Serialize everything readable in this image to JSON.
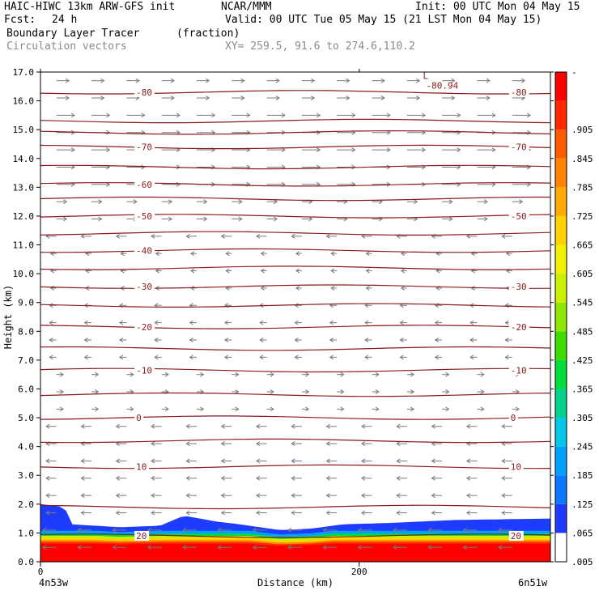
{
  "header": {
    "model": "HAIC-HIWC 13km ARW-GFS init",
    "org": "NCAR/MMM",
    "init": "Init: 00 UTC Mon 04 May 15",
    "fcst_label": "Fcst:",
    "fcst_value": "24 h",
    "valid": "Valid: 00 UTC Tue 05 May 15 (21 LST Mon 04 May 15)",
    "field": "Boundary Layer Tracer",
    "field_units": "(fraction)",
    "vectors": "Circulation vectors",
    "xy": "XY= 259.5, 91.6 to 274.6,110.2"
  },
  "chart_data": {
    "type": "heatmap",
    "title": "Boundary Layer Tracer",
    "xlabel": "Distance (km)",
    "ylabel": "Height (km)",
    "xlim": [
      0,
      320
    ],
    "ylim": [
      0,
      17
    ],
    "x_ticks": [
      {
        "value": 0,
        "label": "0"
      },
      {
        "value": 200,
        "label": "200"
      }
    ],
    "x_end_labels": {
      "left": "4n53w",
      "right": "6n51w"
    },
    "y_ticks": [
      "0.0",
      "1.0",
      "2.0",
      "3.0",
      "4.0",
      "5.0",
      "6.0",
      "7.0",
      "8.0",
      "9.0",
      "10.0",
      "11.0",
      "12.0",
      "13.0",
      "14.0",
      "15.0",
      "16.0",
      "17.0"
    ],
    "colorbar": {
      "labels": [
        ".005",
        ".065",
        ".125",
        ".185",
        ".245",
        ".305",
        ".365",
        ".425",
        ".485",
        ".545",
        ".605",
        ".665",
        ".725",
        ".785",
        ".845",
        ".905",
        "-"
      ],
      "colors": [
        "#ffffff",
        "#1e3cff",
        "#0a78ff",
        "#00a0ff",
        "#00c8e6",
        "#00d28c",
        "#00dc3c",
        "#3cdc00",
        "#8ce600",
        "#c8f000",
        "#f0f000",
        "#ffd200",
        "#ffaa00",
        "#ff8200",
        "#ff5a00",
        "#ff2800",
        "#ff0000"
      ]
    },
    "temperature_contours": {
      "units": "C",
      "lines": [
        {
          "value": 20,
          "height": 0.9,
          "labels": [
            "20",
            "20"
          ]
        },
        {
          "value": 10,
          "height": 3.3,
          "labels": [
            "10",
            "10"
          ]
        },
        {
          "value": 0,
          "height": 5.0,
          "labels": [
            "0",
            "0"
          ]
        },
        {
          "value": -10,
          "height": 6.65,
          "labels": [
            "-10",
            "-10"
          ]
        },
        {
          "value": -20,
          "height": 8.15,
          "labels": [
            "-20",
            "-20"
          ]
        },
        {
          "value": -30,
          "height": 9.55,
          "labels": [
            "-30",
            "-30"
          ]
        },
        {
          "value": -40,
          "height": 10.8,
          "labels": [
            "-40"
          ]
        },
        {
          "value": -50,
          "height": 12.0,
          "labels": [
            "-50",
            "-50"
          ]
        },
        {
          "value": -60,
          "height": 13.1,
          "labels": [
            "-60"
          ]
        },
        {
          "value": -70,
          "height": 14.4,
          "labels": [
            "-70",
            "-70"
          ]
        },
        {
          "value": -80,
          "height": 16.3,
          "labels": [
            "-80",
            "-80"
          ]
        }
      ],
      "extra_lines": [
        1.9,
        4.2,
        5.8,
        7.4,
        8.9,
        10.2,
        11.4,
        12.6,
        13.7,
        14.9,
        15.3
      ],
      "minimum": {
        "symbol": "L",
        "label": "-80.94",
        "x": 240,
        "height": 16.7
      }
    },
    "boundary_layer": {
      "note": "tracer > 0.005 confined below roughly 1.2-2.0 km; near 1.0 in lowest ~0.8 km",
      "top_height": [
        [
          0,
          2.0
        ],
        [
          15,
          1.9
        ],
        [
          20,
          1.3
        ],
        [
          50,
          1.2
        ],
        [
          75,
          1.25
        ],
        [
          90,
          1.6
        ],
        [
          110,
          1.4
        ],
        [
          125,
          1.3
        ],
        [
          150,
          1.1
        ],
        [
          170,
          1.15
        ],
        [
          190,
          1.3
        ],
        [
          220,
          1.35
        ],
        [
          260,
          1.45
        ],
        [
          320,
          1.5
        ]
      ]
    },
    "grid": false
  }
}
